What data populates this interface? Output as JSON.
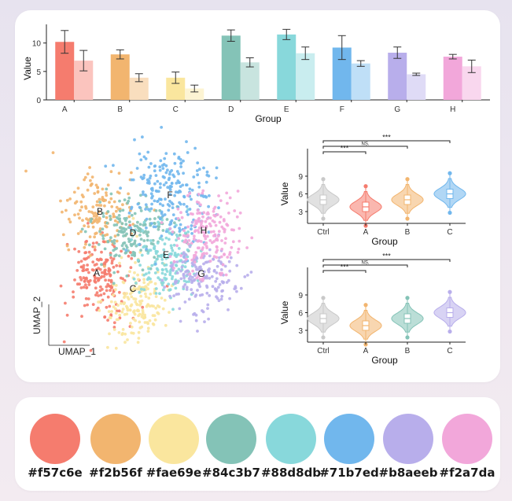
{
  "palette": {
    "colors": [
      "#f57c6e",
      "#f2b56f",
      "#fae69e",
      "#84c3b7",
      "#88d8db",
      "#71b7ed",
      "#b8aeeb",
      "#f2a7da"
    ],
    "labels": [
      "#f57c6e",
      "#f2b56f",
      "#fae69e",
      "#84c3b7",
      "#88d8db",
      "#71b7ed",
      "#b8aeeb",
      "#f2a7da"
    ]
  },
  "chart_data": [
    {
      "type": "bar",
      "xlabel": "Group",
      "ylabel": "Value",
      "ylim": [
        0,
        13
      ],
      "yticks": [
        "0",
        "5",
        "10"
      ],
      "categories": [
        "A",
        "B",
        "C",
        "D",
        "E",
        "F",
        "G",
        "H"
      ],
      "series": [
        {
          "values": [
            10.2,
            8.0,
            3.9,
            11.3,
            11.5,
            9.2,
            8.3,
            7.6
          ],
          "errors": [
            2.0,
            0.8,
            1.0,
            1.0,
            0.9,
            2.1,
            1.0,
            0.4
          ]
        },
        {
          "values": [
            6.9,
            3.9,
            2.0,
            6.6,
            8.2,
            6.4,
            4.5,
            5.9
          ],
          "errors": [
            1.8,
            0.7,
            0.6,
            0.8,
            1.1,
            0.5,
            0.2,
            1.1
          ]
        }
      ]
    },
    {
      "type": "scatter",
      "xlabel": "UMAP_1",
      "ylabel": "UMAP_2",
      "cluster_labels": [
        "A",
        "B",
        "C",
        "D",
        "E",
        "F",
        "G",
        "H"
      ]
    },
    {
      "type": "violin",
      "xlabel": "Group",
      "ylabel": "Value",
      "ylim": [
        1,
        11
      ],
      "yticks": [
        "3",
        "6",
        "9"
      ],
      "categories": [
        "Ctrl",
        "A",
        "B",
        "C"
      ],
      "medians": [
        5.0,
        3.8,
        5.0,
        6.0
      ],
      "colors": [
        "#c9c9c9",
        "#f57c6e",
        "#f2b56f",
        "#71b7ed"
      ],
      "significance": [
        {
          "label": "***",
          "pair": [
            "Ctrl",
            "A"
          ]
        },
        {
          "label": "NS.",
          "pair": [
            "Ctrl",
            "B"
          ]
        },
        {
          "label": "***",
          "pair": [
            "Ctrl",
            "C"
          ]
        }
      ]
    },
    {
      "type": "violin",
      "xlabel": "Group",
      "ylabel": "Value",
      "ylim": [
        1,
        11
      ],
      "yticks": [
        "3",
        "6",
        "9"
      ],
      "categories": [
        "Ctrl",
        "A",
        "B",
        "C"
      ],
      "medians": [
        5.0,
        3.8,
        5.0,
        6.0
      ],
      "colors": [
        "#c9c9c9",
        "#f2b56f",
        "#84c3b7",
        "#b8aeeb"
      ],
      "significance": [
        {
          "label": "***",
          "pair": [
            "Ctrl",
            "A"
          ]
        },
        {
          "label": "NS.",
          "pair": [
            "Ctrl",
            "B"
          ]
        },
        {
          "label": "***",
          "pair": [
            "Ctrl",
            "C"
          ]
        }
      ]
    }
  ]
}
